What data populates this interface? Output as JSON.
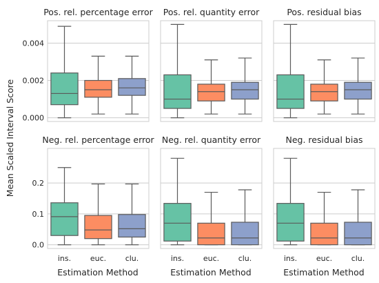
{
  "figure": {
    "ylabel": "Mean Scaled Interval Score",
    "xlabel": "Estimation Method",
    "categories": [
      "ins.",
      "euc.",
      "clu."
    ],
    "colors": [
      "#66c2a5",
      "#fc8d62",
      "#8da0cb"
    ]
  },
  "chart_data": [
    {
      "type": "box",
      "title": "Pos. rel. percentage error",
      "categories": [
        "ins.",
        "euc.",
        "clu."
      ],
      "ylim": [
        -0.0002,
        0.0052
      ],
      "yticks": [
        0.0,
        0.002,
        0.004
      ],
      "ytick_labels": [
        "0.000",
        "0.002",
        "0.004"
      ],
      "boxes": [
        {
          "name": "ins.",
          "whislo": 0.0,
          "q1": 0.0007,
          "med": 0.0013,
          "q3": 0.0024,
          "whishi": 0.0049
        },
        {
          "name": "euc.",
          "whislo": 0.0002,
          "q1": 0.0011,
          "med": 0.0015,
          "q3": 0.002,
          "whishi": 0.0033
        },
        {
          "name": "clu.",
          "whislo": 0.0002,
          "q1": 0.0012,
          "med": 0.0016,
          "q3": 0.0021,
          "whishi": 0.0033
        }
      ]
    },
    {
      "type": "box",
      "title": "Pos. rel. quantity error",
      "categories": [
        "ins.",
        "euc.",
        "clu."
      ],
      "ylim": [
        -0.0002,
        0.0052
      ],
      "yticks": [
        0.0,
        0.002,
        0.004
      ],
      "ytick_labels": [
        "",
        "",
        ""
      ],
      "boxes": [
        {
          "name": "ins.",
          "whislo": 0.0,
          "q1": 0.0005,
          "med": 0.001,
          "q3": 0.0023,
          "whishi": 0.005
        },
        {
          "name": "euc.",
          "whislo": 0.0002,
          "q1": 0.0009,
          "med": 0.0014,
          "q3": 0.0018,
          "whishi": 0.0031
        },
        {
          "name": "clu.",
          "whislo": 0.0002,
          "q1": 0.001,
          "med": 0.0015,
          "q3": 0.0019,
          "whishi": 0.0032
        }
      ]
    },
    {
      "type": "box",
      "title": "Pos. residual bias",
      "categories": [
        "ins.",
        "euc.",
        "clu."
      ],
      "ylim": [
        -0.0002,
        0.0052
      ],
      "yticks": [
        0.0,
        0.002,
        0.004
      ],
      "ytick_labels": [
        "",
        "",
        ""
      ],
      "boxes": [
        {
          "name": "ins.",
          "whislo": 0.0,
          "q1": 0.0005,
          "med": 0.001,
          "q3": 0.0023,
          "whishi": 0.005
        },
        {
          "name": "euc.",
          "whislo": 0.0002,
          "q1": 0.0009,
          "med": 0.0014,
          "q3": 0.0018,
          "whishi": 0.0031
        },
        {
          "name": "clu.",
          "whislo": 0.0002,
          "q1": 0.001,
          "med": 0.0015,
          "q3": 0.0019,
          "whishi": 0.0032
        }
      ]
    },
    {
      "type": "box",
      "title": "Neg. rel. percentage error",
      "categories": [
        "ins.",
        "euc.",
        "clu."
      ],
      "ylim": [
        -0.012,
        0.312
      ],
      "yticks": [
        0.0,
        0.1,
        0.2
      ],
      "ytick_labels": [
        "0.0",
        "0.1",
        "0.2"
      ],
      "boxes": [
        {
          "name": "ins.",
          "whislo": 0.0,
          "q1": 0.03,
          "med": 0.091,
          "q3": 0.136,
          "whishi": 0.25
        },
        {
          "name": "euc.",
          "whislo": 0.0,
          "q1": 0.02,
          "med": 0.048,
          "q3": 0.095,
          "whishi": 0.197
        },
        {
          "name": "clu.",
          "whislo": 0.0,
          "q1": 0.025,
          "med": 0.052,
          "q3": 0.098,
          "whishi": 0.197
        }
      ]
    },
    {
      "type": "box",
      "title": "Neg. rel. quantity error",
      "categories": [
        "ins.",
        "euc.",
        "clu."
      ],
      "ylim": [
        -0.012,
        0.312
      ],
      "yticks": [
        0.0,
        0.1,
        0.2
      ],
      "ytick_labels": [
        "",
        "",
        ""
      ],
      "boxes": [
        {
          "name": "ins.",
          "whislo": 0.0,
          "q1": 0.012,
          "med": 0.07,
          "q3": 0.134,
          "whishi": 0.28
        },
        {
          "name": "euc.",
          "whislo": 0.0,
          "q1": 0.0,
          "med": 0.022,
          "q3": 0.07,
          "whishi": 0.17
        },
        {
          "name": "clu.",
          "whislo": 0.0,
          "q1": 0.0,
          "med": 0.022,
          "q3": 0.073,
          "whishi": 0.178
        }
      ]
    },
    {
      "type": "box",
      "title": "Neg. residual bias",
      "categories": [
        "ins.",
        "euc.",
        "clu."
      ],
      "ylim": [
        -0.012,
        0.312
      ],
      "yticks": [
        0.0,
        0.1,
        0.2
      ],
      "ytick_labels": [
        "",
        "",
        ""
      ],
      "boxes": [
        {
          "name": "ins.",
          "whislo": 0.0,
          "q1": 0.012,
          "med": 0.07,
          "q3": 0.134,
          "whishi": 0.28
        },
        {
          "name": "euc.",
          "whislo": 0.0,
          "q1": 0.0,
          "med": 0.022,
          "q3": 0.07,
          "whishi": 0.17
        },
        {
          "name": "clu.",
          "whislo": 0.0,
          "q1": 0.0,
          "med": 0.022,
          "q3": 0.073,
          "whishi": 0.178
        }
      ]
    }
  ]
}
